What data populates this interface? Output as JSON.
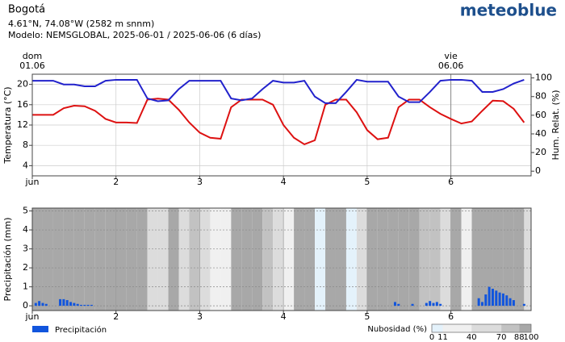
{
  "header": {
    "place": "Bogotá",
    "coords": "4.61°N, 74.08°W (2582 m snnm)",
    "model": "Modelo: NEMSGLOBAL, 2025-06-01 / 2025-06-06 (6 días)",
    "logo": "meteoblue"
  },
  "chart_data": [
    {
      "type": "line",
      "grid": true,
      "xlim": [
        0,
        143
      ],
      "xticks": [
        {
          "value": 0,
          "label": "jun"
        },
        {
          "value": 24,
          "label": "2"
        },
        {
          "value": 48,
          "label": "3"
        },
        {
          "value": 72,
          "label": "4"
        },
        {
          "value": 96,
          "label": "5"
        },
        {
          "value": 120,
          "label": "6"
        }
      ],
      "ylabel": "Temperatura (°C)",
      "ycolor": "#cc0000",
      "ylim": [
        2,
        22
      ],
      "yticks": [
        4,
        8,
        12,
        16,
        20
      ],
      "y2label": "Hum. Relat. (%)",
      "y2color": "#1f1fc4",
      "y2lim": [
        -5,
        104
      ],
      "y2ticks": [
        0,
        20,
        40,
        60,
        80,
        100
      ],
      "markers": [
        {
          "day": "dom",
          "date": "01.06",
          "x": 0,
          "color": "#cc0000"
        },
        {
          "day": "vie",
          "date": "06.06",
          "x": 120,
          "color": "#000000"
        }
      ],
      "x": [
        0,
        3,
        6,
        9,
        12,
        15,
        18,
        21,
        24,
        27,
        30,
        33,
        36,
        39,
        42,
        45,
        48,
        51,
        54,
        57,
        60,
        63,
        66,
        69,
        72,
        75,
        78,
        81,
        84,
        87,
        90,
        93,
        96,
        99,
        102,
        105,
        108,
        111,
        114,
        117,
        120,
        123,
        126,
        129,
        132,
        135,
        138,
        141
      ],
      "series": [
        {
          "name": "Temperatura",
          "color": "#dd1111",
          "axis": "y",
          "values": [
            14,
            14,
            14,
            15.3,
            15.8,
            15.7,
            14.8,
            13.2,
            12.5,
            12.5,
            12.4,
            17,
            17.2,
            17,
            15,
            12.5,
            10.5,
            9.5,
            9.3,
            15.5,
            17,
            17,
            17,
            16,
            12,
            9.5,
            8.2,
            9,
            16,
            17,
            17,
            14.5,
            11,
            9.2,
            9.5,
            15.5,
            17,
            17,
            15.5,
            14.2,
            13.2,
            12.3,
            12.7,
            14.8,
            16.8,
            16.7,
            15.2,
            12.5
          ]
        },
        {
          "name": "Humedad",
          "color": "#2222cc",
          "axis": "y2",
          "values": [
            97,
            97,
            97,
            93,
            93,
            91,
            91,
            97,
            98,
            98,
            98,
            78,
            75,
            76,
            88,
            97,
            97,
            97,
            97,
            78,
            76,
            78,
            88,
            97,
            95,
            95,
            97,
            80,
            73,
            73,
            85,
            98,
            96,
            96,
            96,
            80,
            74,
            74,
            85,
            97,
            98,
            98,
            97,
            85,
            85,
            88,
            94,
            98
          ]
        }
      ]
    },
    {
      "type": "bar",
      "grid": true,
      "xlim": [
        0,
        143
      ],
      "xticks": [
        {
          "value": 0,
          "label": "jun"
        },
        {
          "value": 24,
          "label": "2"
        },
        {
          "value": 48,
          "label": "3"
        },
        {
          "value": 72,
          "label": "4"
        },
        {
          "value": 96,
          "label": "5"
        },
        {
          "value": 120,
          "label": "6"
        }
      ],
      "ylabel": "Precipitación (mm)",
      "ylim": [
        -0.25,
        5.15
      ],
      "yticks": [
        0,
        1,
        2,
        3,
        4,
        5
      ],
      "background": {
        "name": "Nubosidad (%)",
        "x": [
          0,
          3,
          6,
          9,
          12,
          15,
          18,
          21,
          24,
          27,
          30,
          33,
          36,
          39,
          42,
          45,
          48,
          51,
          54,
          57,
          60,
          63,
          66,
          69,
          72,
          75,
          78,
          81,
          84,
          87,
          90,
          93,
          96,
          99,
          102,
          105,
          108,
          111,
          114,
          117,
          120,
          123,
          126,
          129,
          132,
          135,
          138,
          141
        ],
        "values": [
          95,
          95,
          95,
          95,
          95,
          95,
          95,
          95,
          95,
          95,
          95,
          50,
          60,
          95,
          60,
          80,
          50,
          30,
          30,
          95,
          95,
          95,
          80,
          40,
          30,
          90,
          95,
          5,
          95,
          90,
          5,
          60,
          95,
          95,
          95,
          95,
          95,
          85,
          75,
          60,
          90,
          30,
          95,
          95,
          95,
          95,
          90,
          60
        ]
      },
      "colorbar": {
        "ticks": [
          0,
          11,
          40,
          70,
          88,
          100
        ],
        "colors": [
          "#e4f2fb",
          "#f0f0f0",
          "#dcdcdc",
          "#c2c2c2",
          "#a8a8a8"
        ]
      },
      "series": [
        {
          "name": "Precipitación",
          "color": "#1155dd",
          "x": [
            1,
            2,
            3,
            4,
            8,
            9,
            10,
            11,
            12,
            13,
            14,
            15,
            16,
            17,
            104,
            105,
            109,
            113,
            114,
            115,
            116,
            117,
            128,
            129,
            130,
            131,
            132,
            133,
            134,
            135,
            136,
            137,
            138,
            141
          ],
          "values": [
            0.15,
            0.25,
            0.15,
            0.1,
            0.35,
            0.35,
            0.3,
            0.2,
            0.15,
            0.1,
            0.05,
            0.05,
            0.05,
            0.05,
            0.2,
            0.1,
            0.1,
            0.15,
            0.25,
            0.15,
            0.2,
            0.1,
            0.4,
            0.2,
            0.6,
            1.0,
            0.9,
            0.8,
            0.7,
            0.65,
            0.55,
            0.4,
            0.3,
            0.1
          ]
        }
      ]
    }
  ]
}
